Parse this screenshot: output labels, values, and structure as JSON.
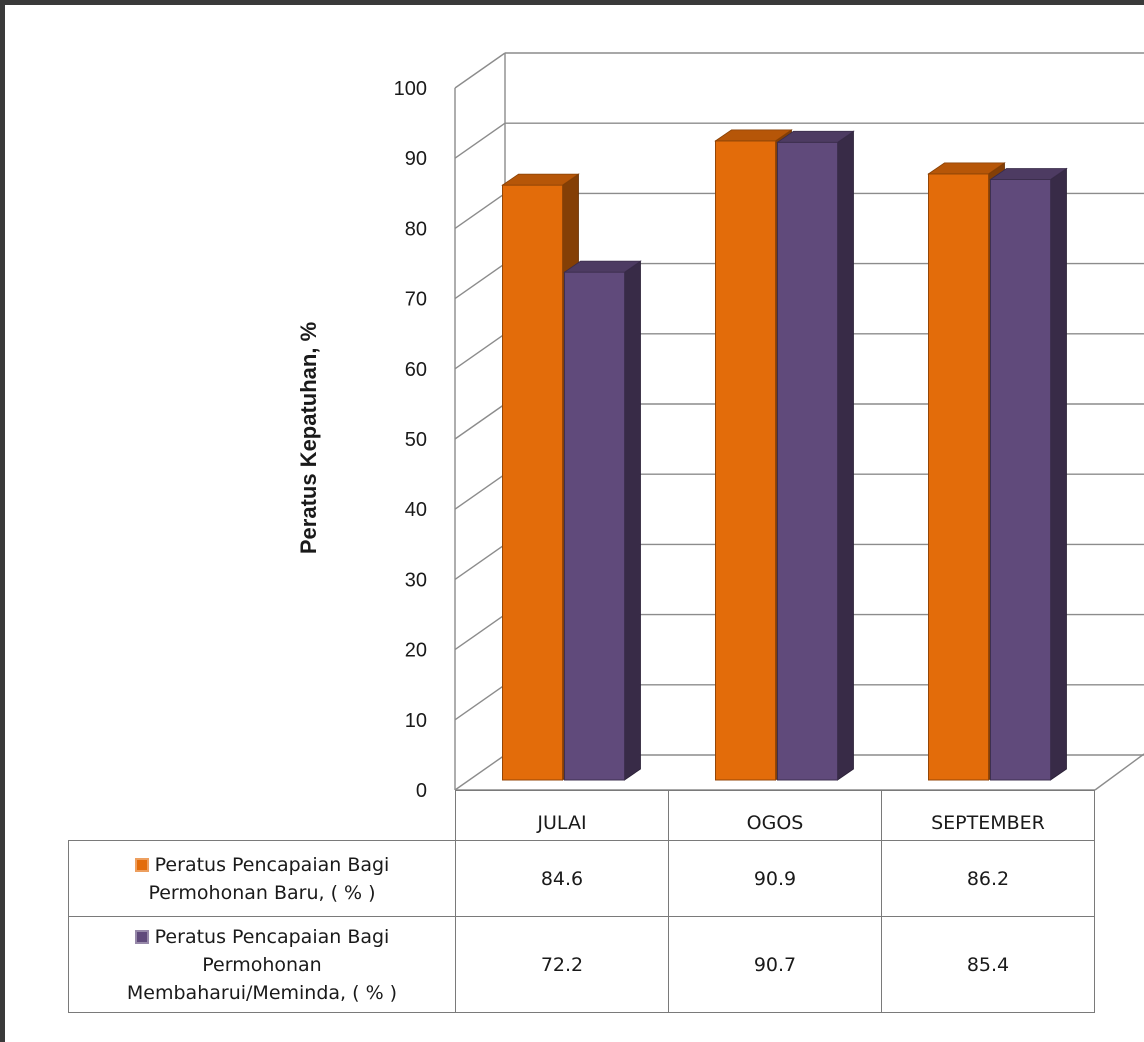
{
  "chart_data": {
    "type": "bar",
    "ylabel": "Peratus Kepatuhan, %",
    "ylim": [
      0,
      100
    ],
    "yticks": [
      "0",
      "10",
      "20",
      "30",
      "40",
      "50",
      "60",
      "70",
      "80",
      "90",
      "100"
    ],
    "categories": [
      "JULAI",
      "OGOS",
      "SEPTEMBER"
    ],
    "grid": true,
    "legend": "table",
    "series": [
      {
        "name": "Peratus Pencapaian Bagi Permohonan Baru, ( % )",
        "name_lines": [
          "Peratus Pencapaian Bagi",
          "Permohonan Baru, ( % )"
        ],
        "values": [
          84.6,
          90.9,
          86.2
        ],
        "value_labels": [
          "84.6",
          "90.9",
          "86.2"
        ],
        "color": "#E36C0A"
      },
      {
        "name": "Peratus Pencapaian Bagi Permohonan Membaharui/Meminda, ( % )",
        "name_lines": [
          "Peratus Pencapaian Bagi",
          "Permohonan",
          "Membaharui/Meminda, ( % )"
        ],
        "values": [
          72.2,
          90.7,
          85.4
        ],
        "value_labels": [
          "72.2",
          "90.7",
          "85.4"
        ],
        "color": "#604A7B"
      }
    ]
  }
}
